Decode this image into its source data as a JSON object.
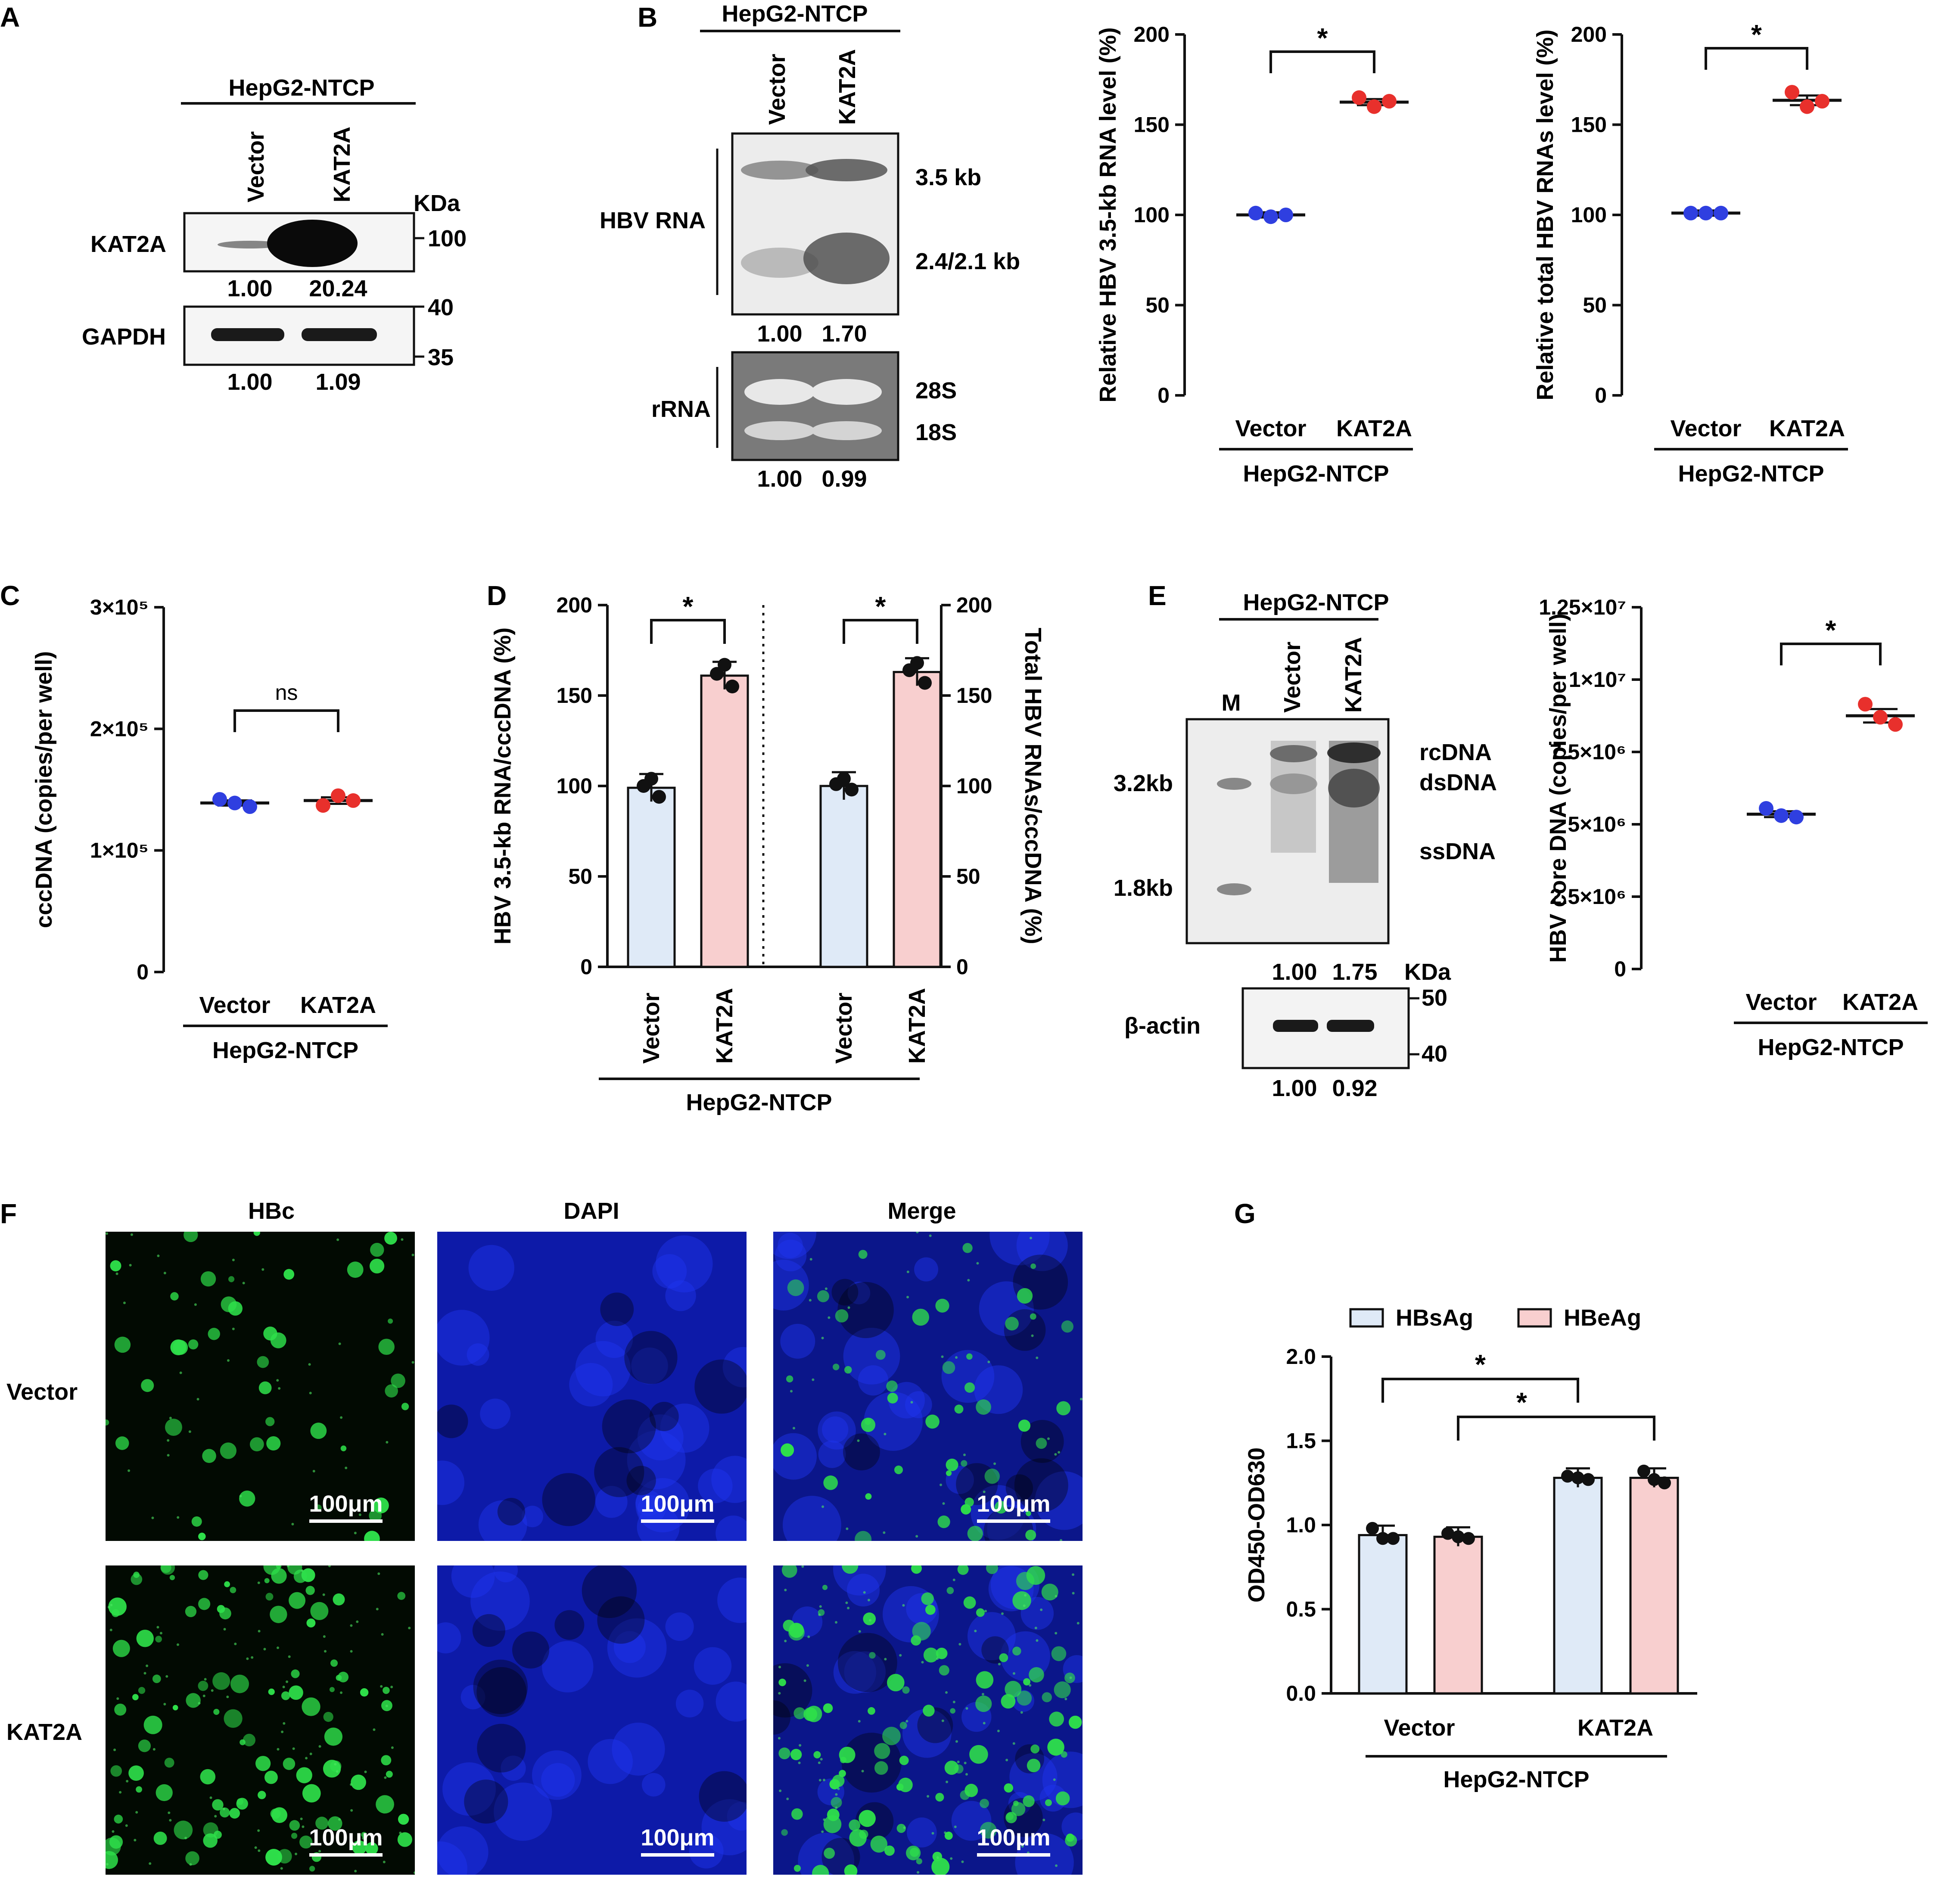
{
  "colors": {
    "blue_dot": "#2f3fe0",
    "red_dot": "#e8302c",
    "bar_blue": "#dfeaf7",
    "bar_red": "#f8cfcf",
    "green": "#2ee04a",
    "dapi": "#1a2fd8"
  },
  "panel_letters": {
    "a": "A",
    "b": "B",
    "c": "C",
    "d": "D",
    "e": "E",
    "f": "F",
    "g": "G"
  },
  "panel_a": {
    "cell_line": "HepG2-NTCP",
    "lanes": [
      "Vector",
      "KAT2A"
    ],
    "kda_label": "KDa",
    "kat2a": {
      "label": "KAT2A",
      "values": [
        "1.00",
        "20.24"
      ],
      "marker": "100"
    },
    "gapdh": {
      "label": "GAPDH",
      "values": [
        "1.00",
        "1.09"
      ],
      "marker_top": "40",
      "marker_bottom": "35"
    }
  },
  "panel_b_blot": {
    "cell_line": "HepG2-NTCP",
    "lanes": [
      "Vector",
      "KAT2A"
    ],
    "hbv_label": "HBV RNA",
    "band_top": "3.5 kb",
    "band_bottom": "2.4/2.1 kb",
    "hbv_values": [
      "1.00",
      "1.70"
    ],
    "rrna_label": "rRNA",
    "rrna_28s": "28S",
    "rrna_18s": "18S",
    "rrna_values": [
      "1.00",
      "0.99"
    ]
  },
  "panel_f": {
    "columns": [
      "HBc",
      "DAPI",
      "Merge"
    ],
    "rows": [
      "Vector",
      "KAT2A"
    ],
    "scalebar": "100μm"
  },
  "panel_e_blot": {
    "cell_line": "HepG2-NTCP",
    "lanes": [
      "M",
      "Vector",
      "KAT2A"
    ],
    "markers": [
      "3.2kb",
      "1.8kb"
    ],
    "species": [
      "rcDNA",
      "dsDNA",
      "ssDNA"
    ],
    "values": [
      "1.00",
      "1.75"
    ],
    "kda_label": "KDa",
    "actin_label": "β-actin",
    "actin_marker_top": "50",
    "actin_marker_bottom": "40",
    "actin_values": [
      "1.00",
      "0.92"
    ]
  },
  "chart_data": [
    {
      "id": "B1",
      "type": "scatter",
      "ylabel": "Relative HBV 3.5-kb RNA level (%)",
      "xlabel": "HepG2-NTCP",
      "categories": [
        "Vector",
        "KAT2A"
      ],
      "ylim": [
        0,
        200
      ],
      "yticks": [
        0,
        50,
        100,
        150,
        200
      ],
      "series": [
        {
          "values": [
            [
              101,
              99,
              100
            ],
            [
              165,
              160,
              163
            ]
          ]
        }
      ],
      "means": [
        100,
        162.5
      ],
      "sig": [
        "*"
      ]
    },
    {
      "id": "B2",
      "type": "scatter",
      "ylabel": "Relative total HBV RNAs level (%)",
      "xlabel": "HepG2-NTCP",
      "categories": [
        "Vector",
        "KAT2A"
      ],
      "ylim": [
        0,
        200
      ],
      "yticks": [
        0,
        50,
        100,
        150,
        200
      ],
      "series": [
        {
          "values": [
            [
              101,
              101,
              101
            ],
            [
              168,
              160,
              163
            ]
          ]
        }
      ],
      "means": [
        101,
        163.5
      ],
      "sig": [
        "*"
      ]
    },
    {
      "id": "C",
      "type": "scatter",
      "ylabel": "cccDNA (copies/per well)",
      "xlabel": "HepG2-NTCP",
      "categories": [
        "Vector",
        "KAT2A"
      ],
      "ylim": [
        0,
        300000
      ],
      "ytick_labels": [
        "0",
        "1×10⁵",
        "2×10⁵",
        "3×10⁵"
      ],
      "series": [
        {
          "values": [
            [
              142000,
              139000,
              136000
            ],
            [
              137000,
              145000,
              141000
            ]
          ]
        }
      ],
      "means": [
        139000,
        141000
      ],
      "sig": [
        "ns"
      ]
    },
    {
      "id": "D",
      "type": "bar",
      "ylabel": "HBV 3.5-kb RNA/cccDNA (%)",
      "ylabel_right": "Total HBV RNAs/cccDNA (%)",
      "xlabel": "HepG2-NTCP",
      "categories": [
        "Vector",
        "KAT2A",
        "Vector",
        "KAT2A"
      ],
      "ylim": [
        0,
        200
      ],
      "yticks": [
        0,
        50,
        100,
        150,
        200
      ],
      "values": [
        99,
        161,
        100,
        163
      ],
      "points": [
        [
          104,
          100,
          94
        ],
        [
          167,
          162,
          155
        ],
        [
          104,
          101,
          98
        ],
        [
          168,
          164,
          157
        ]
      ],
      "sig": [
        "*",
        "*"
      ]
    },
    {
      "id": "E",
      "type": "scatter",
      "ylabel": "HBV core DNA (copies/per well)",
      "xlabel": "HepG2-NTCP",
      "categories": [
        "Vector",
        "KAT2A"
      ],
      "ylim": [
        0,
        12500000
      ],
      "ytick_labels": [
        "0",
        "2.5×10⁶",
        "5×10⁶",
        "7.5×10⁶",
        "1×10⁷",
        "1.25×10⁷"
      ],
      "series": [
        {
          "values": [
            [
              5550000,
              5300000,
              5250000
            ],
            [
              9150000,
              8700000,
              8450000
            ]
          ]
        }
      ],
      "means": [
        5350000,
        8750000
      ],
      "sig": [
        "*"
      ]
    },
    {
      "id": "G",
      "type": "bar",
      "ylabel": "OD450-OD630",
      "xlabel": "HepG2-NTCP",
      "categories": [
        "Vector",
        "KAT2A"
      ],
      "ylim": [
        0,
        2.0
      ],
      "ytick_labels": [
        "0.0",
        "0.5",
        "1.0",
        "1.5",
        "2.0"
      ],
      "series": [
        {
          "name": "HBsAg",
          "values": [
            0.94,
            1.28
          ],
          "points": [
            [
              0.98,
              0.92,
              0.92
            ],
            [
              1.29,
              1.28,
              1.27
            ]
          ]
        },
        {
          "name": "HBeAg",
          "values": [
            0.93,
            1.28
          ],
          "points": [
            [
              0.95,
              0.93,
              0.92
            ],
            [
              1.32,
              1.27,
              1.25
            ]
          ]
        }
      ],
      "sig": [
        "*",
        "*"
      ]
    }
  ]
}
